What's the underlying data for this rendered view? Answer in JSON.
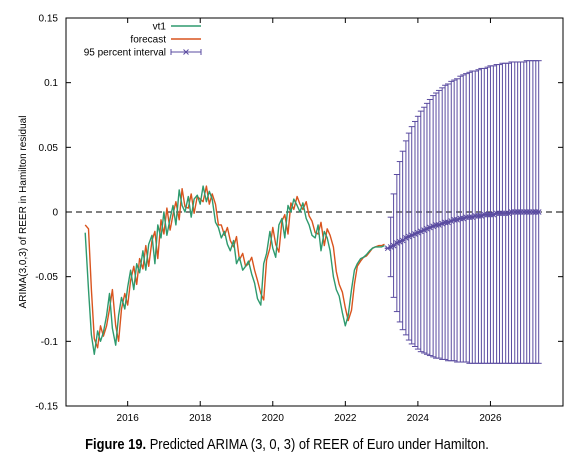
{
  "chart_data": {
    "type": "line",
    "title": "",
    "xlabel": "",
    "ylabel": "ARIMA(3,0,3) of REER in Hamilton residual",
    "xlim": [
      2014.3,
      2028.0
    ],
    "ylim": [
      -0.15,
      0.15
    ],
    "x_ticks": [
      2016,
      2018,
      2020,
      2022,
      2024,
      2026
    ],
    "x_tick_labels": [
      "2016",
      "2018",
      "2020",
      "2022",
      "2024",
      "2026"
    ],
    "y_ticks": [
      -0.15,
      -0.1,
      -0.05,
      0,
      0.05,
      0.1,
      0.15
    ],
    "y_tick_labels": [
      "-0.15",
      "-0.1",
      "-0.05",
      "0",
      "0.05",
      "0.1",
      "0.15"
    ],
    "legend_position": "top-left",
    "zero_line": true,
    "colors": {
      "vt1": "#2e9a6e",
      "forecast": "#d9541e",
      "interval": "#5a4ba0"
    },
    "series": [
      {
        "name": "vt1",
        "x": [
          2014.83,
          2014.92,
          2015.0,
          2015.08,
          2015.17,
          2015.25,
          2015.33,
          2015.42,
          2015.5,
          2015.58,
          2015.67,
          2015.75,
          2015.83,
          2015.92,
          2016.0,
          2016.08,
          2016.17,
          2016.25,
          2016.33,
          2016.42,
          2016.5,
          2016.58,
          2016.67,
          2016.75,
          2016.83,
          2016.92,
          2017.0,
          2017.08,
          2017.17,
          2017.25,
          2017.33,
          2017.42,
          2017.5,
          2017.58,
          2017.67,
          2017.75,
          2017.83,
          2017.92,
          2018.0,
          2018.08,
          2018.17,
          2018.25,
          2018.33,
          2018.42,
          2018.5,
          2018.58,
          2018.67,
          2018.75,
          2018.83,
          2018.92,
          2019.0,
          2019.08,
          2019.17,
          2019.25,
          2019.33,
          2019.42,
          2019.5,
          2019.58,
          2019.67,
          2019.75,
          2019.83,
          2019.92,
          2020.0,
          2020.08,
          2020.17,
          2020.25,
          2020.33,
          2020.42,
          2020.5,
          2020.58,
          2020.67,
          2020.75,
          2020.83,
          2020.92,
          2021.0,
          2021.08,
          2021.17,
          2021.25,
          2021.33,
          2021.42,
          2021.5,
          2021.58,
          2021.67,
          2021.75,
          2021.83,
          2021.92,
          2022.0,
          2022.08,
          2022.17,
          2022.25,
          2022.33,
          2022.42,
          2022.5,
          2022.58,
          2022.67,
          2022.75,
          2022.83,
          2022.92,
          2023.0,
          2023.08
        ],
        "values": [
          -0.016,
          -0.06,
          -0.095,
          -0.11,
          -0.092,
          -0.1,
          -0.093,
          -0.08,
          -0.063,
          -0.09,
          -0.103,
          -0.08,
          -0.066,
          -0.075,
          -0.058,
          -0.045,
          -0.06,
          -0.04,
          -0.047,
          -0.03,
          -0.045,
          -0.025,
          -0.018,
          -0.04,
          -0.01,
          -0.02,
          0.0,
          -0.018,
          -0.005,
          0.005,
          -0.01,
          0.017,
          0.005,
          0.0,
          0.012,
          -0.004,
          0.01,
          0.013,
          0.006,
          0.02,
          0.008,
          0.016,
          0.01,
          -0.008,
          -0.012,
          -0.02,
          -0.015,
          -0.025,
          -0.03,
          -0.022,
          -0.04,
          -0.035,
          -0.045,
          -0.042,
          -0.038,
          -0.048,
          -0.055,
          -0.067,
          -0.072,
          -0.04,
          -0.032,
          -0.015,
          -0.028,
          -0.035,
          -0.01,
          -0.005,
          -0.02,
          0.005,
          0.0,
          0.01,
          0.005,
          0.0,
          0.007,
          -0.005,
          -0.01,
          -0.018,
          -0.02,
          -0.01,
          -0.03,
          -0.015,
          -0.02,
          -0.03,
          -0.05,
          -0.06,
          -0.065,
          -0.078,
          -0.088,
          -0.08,
          -0.06,
          -0.045,
          -0.04,
          -0.036,
          -0.035,
          -0.033,
          -0.03,
          -0.028,
          -0.027,
          -0.027,
          -0.027,
          -0.026
        ]
      },
      {
        "name": "forecast",
        "x": [
          2014.83,
          2014.92,
          2015.0,
          2015.08,
          2015.17,
          2015.25,
          2015.33,
          2015.42,
          2015.5,
          2015.58,
          2015.67,
          2015.75,
          2015.83,
          2015.92,
          2016.0,
          2016.08,
          2016.17,
          2016.25,
          2016.33,
          2016.42,
          2016.5,
          2016.58,
          2016.67,
          2016.75,
          2016.83,
          2016.92,
          2017.0,
          2017.08,
          2017.17,
          2017.25,
          2017.33,
          2017.42,
          2017.5,
          2017.58,
          2017.67,
          2017.75,
          2017.83,
          2017.92,
          2018.0,
          2018.08,
          2018.17,
          2018.25,
          2018.33,
          2018.42,
          2018.5,
          2018.58,
          2018.67,
          2018.75,
          2018.83,
          2018.92,
          2019.0,
          2019.08,
          2019.17,
          2019.25,
          2019.33,
          2019.42,
          2019.5,
          2019.58,
          2019.67,
          2019.75,
          2019.83,
          2019.92,
          2020.0,
          2020.08,
          2020.17,
          2020.25,
          2020.33,
          2020.42,
          2020.5,
          2020.58,
          2020.67,
          2020.75,
          2020.83,
          2020.92,
          2021.0,
          2021.08,
          2021.17,
          2021.25,
          2021.33,
          2021.42,
          2021.5,
          2021.58,
          2021.67,
          2021.75,
          2021.83,
          2021.92,
          2022.0,
          2022.08,
          2022.17,
          2022.25,
          2022.33,
          2022.42,
          2022.5,
          2022.58,
          2022.67,
          2022.75,
          2022.83,
          2022.92,
          2023.0,
          2023.08
        ],
        "values": [
          -0.01,
          -0.013,
          -0.06,
          -0.098,
          -0.105,
          -0.088,
          -0.096,
          -0.088,
          -0.075,
          -0.06,
          -0.088,
          -0.1,
          -0.075,
          -0.063,
          -0.072,
          -0.053,
          -0.042,
          -0.056,
          -0.036,
          -0.044,
          -0.026,
          -0.042,
          -0.022,
          -0.015,
          -0.036,
          -0.006,
          -0.017,
          0.003,
          -0.014,
          -0.002,
          0.008,
          -0.006,
          0.018,
          0.004,
          0.003,
          0.014,
          -0.001,
          0.012,
          0.01,
          0.008,
          0.02,
          0.006,
          0.014,
          0.006,
          -0.01,
          -0.01,
          -0.018,
          -0.012,
          -0.022,
          -0.027,
          -0.019,
          -0.037,
          -0.032,
          -0.042,
          -0.04,
          -0.035,
          -0.045,
          -0.053,
          -0.063,
          -0.068,
          -0.037,
          -0.028,
          -0.012,
          -0.025,
          -0.031,
          -0.007,
          -0.002,
          -0.017,
          0.007,
          0.002,
          0.012,
          0.006,
          0.002,
          0.008,
          -0.003,
          -0.007,
          -0.016,
          -0.017,
          -0.008,
          -0.026,
          -0.013,
          -0.018,
          -0.027,
          -0.046,
          -0.056,
          -0.062,
          -0.074,
          -0.084,
          -0.076,
          -0.056,
          -0.042,
          -0.038,
          -0.035,
          -0.034,
          -0.031,
          -0.028,
          -0.027,
          -0.026,
          -0.026,
          -0.025
        ]
      },
      {
        "name": "95 percent interval",
        "x": [
          2023.17,
          2023.25,
          2023.33,
          2023.42,
          2023.5,
          2023.58,
          2023.67,
          2023.75,
          2023.83,
          2023.92,
          2024.0,
          2024.08,
          2024.17,
          2024.25,
          2024.33,
          2024.42,
          2024.5,
          2024.58,
          2024.67,
          2024.75,
          2024.83,
          2024.92,
          2025.0,
          2025.08,
          2025.17,
          2025.25,
          2025.33,
          2025.42,
          2025.5,
          2025.58,
          2025.67,
          2025.75,
          2025.83,
          2025.92,
          2026.0,
          2026.08,
          2026.17,
          2026.25,
          2026.33,
          2026.42,
          2026.5,
          2026.58,
          2026.67,
          2026.75,
          2026.83,
          2026.92,
          2027.0,
          2027.08,
          2027.17,
          2027.25,
          2027.33
        ],
        "values": [
          -0.028,
          -0.027,
          -0.026,
          -0.024,
          -0.023,
          -0.022,
          -0.02,
          -0.019,
          -0.018,
          -0.017,
          -0.016,
          -0.015,
          -0.014,
          -0.013,
          -0.012,
          -0.011,
          -0.01,
          -0.01,
          -0.009,
          -0.008,
          -0.008,
          -0.007,
          -0.006,
          -0.006,
          -0.005,
          -0.005,
          -0.004,
          -0.004,
          -0.004,
          -0.003,
          -0.003,
          -0.003,
          -0.002,
          -0.002,
          -0.002,
          -0.002,
          -0.001,
          -0.001,
          -0.001,
          -0.001,
          -0.001,
          0.0,
          0.0,
          0.0,
          0.0,
          0.0,
          0.0,
          0.0,
          0.0,
          0.0,
          0.0
        ],
        "lower": [
          -0.028,
          -0.05,
          -0.066,
          -0.077,
          -0.085,
          -0.091,
          -0.095,
          -0.099,
          -0.102,
          -0.104,
          -0.106,
          -0.108,
          -0.109,
          -0.11,
          -0.111,
          -0.112,
          -0.113,
          -0.113,
          -0.114,
          -0.114,
          -0.115,
          -0.115,
          -0.115,
          -0.116,
          -0.116,
          -0.116,
          -0.116,
          -0.117,
          -0.117,
          -0.117,
          -0.117,
          -0.117,
          -0.117,
          -0.117,
          -0.117,
          -0.117,
          -0.117,
          -0.117,
          -0.117,
          -0.117,
          -0.117,
          -0.117,
          -0.117,
          -0.117,
          -0.117,
          -0.117,
          -0.117,
          -0.117,
          -0.117,
          -0.117,
          -0.117
        ],
        "upper": [
          -0.028,
          -0.004,
          0.014,
          0.029,
          0.039,
          0.047,
          0.055,
          0.061,
          0.066,
          0.07,
          0.074,
          0.078,
          0.081,
          0.084,
          0.087,
          0.09,
          0.092,
          0.094,
          0.096,
          0.098,
          0.099,
          0.101,
          0.102,
          0.103,
          0.105,
          0.106,
          0.107,
          0.108,
          0.109,
          0.109,
          0.11,
          0.111,
          0.111,
          0.112,
          0.113,
          0.113,
          0.114,
          0.114,
          0.115,
          0.115,
          0.115,
          0.116,
          0.116,
          0.116,
          0.116,
          0.116,
          0.117,
          0.117,
          0.117,
          0.117,
          0.117
        ]
      }
    ]
  },
  "caption": {
    "label": "Figure 19.",
    "text": " Predicted ARIMA (3, 0, 3) of REER of Euro under Hamilton."
  }
}
